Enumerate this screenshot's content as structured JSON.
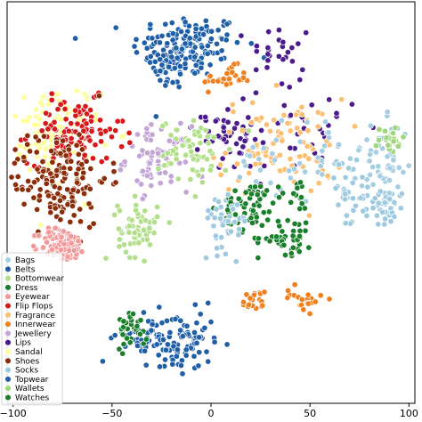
{
  "chart_data": {
    "type": "scatter",
    "title": "",
    "xlabel": "",
    "ylabel": "",
    "xlim": [
      -103,
      103
    ],
    "ylim": [
      -100,
      100
    ],
    "x_ticks": [
      -100,
      -50,
      0,
      50,
      100
    ],
    "x_tick_labels": [
      "−100",
      "−50",
      "0",
      "50",
      "100"
    ],
    "grid": false,
    "legend_placement": "lower-left",
    "series": [
      {
        "name": "Bags",
        "color": "#a6cee3"
      },
      {
        "name": "Belts",
        "color": "#1f5fa8"
      },
      {
        "name": "Bottomwear",
        "color": "#b2df8a"
      },
      {
        "name": "Dress",
        "color": "#1a7f2a"
      },
      {
        "name": "Eyewear",
        "color": "#f4999a"
      },
      {
        "name": "Flip Flops",
        "color": "#d7191c"
      },
      {
        "name": "Fragrance",
        "color": "#fdbf6f"
      },
      {
        "name": "Innerwear",
        "color": "#f07f1e"
      },
      {
        "name": "Jewellery",
        "color": "#c3a5d6"
      },
      {
        "name": "Lips",
        "color": "#4b1a8c"
      },
      {
        "name": "Sandal",
        "color": "#ffff99"
      },
      {
        "name": "Shoes",
        "color": "#8c2d0a"
      },
      {
        "name": "Socks",
        "color": "#9ecae1"
      },
      {
        "name": "Topwear",
        "color": "#1f5fa8"
      },
      {
        "name": "Wallets",
        "color": "#9fd77a"
      },
      {
        "name": "Watches",
        "color": "#1a7f2a"
      }
    ],
    "clusters": [
      {
        "series": "Belts",
        "cx": -12,
        "cy": 78,
        "sx": 14,
        "sy": 8,
        "n": 140
      },
      {
        "series": "Topwear",
        "cx": -20,
        "cy": 68,
        "sx": 5,
        "sy": 6,
        "n": 40
      },
      {
        "series": "Lips",
        "cx": 35,
        "cy": 76,
        "sx": 8,
        "sy": 7,
        "n": 25
      },
      {
        "series": "Innerwear",
        "cx": 8,
        "cy": 62,
        "sx": 6,
        "sy": 3,
        "n": 30
      },
      {
        "series": "Lips",
        "cx": 8,
        "cy": 33,
        "sx": 6,
        "sy": 8,
        "n": 35
      },
      {
        "series": "Lips",
        "cx": 40,
        "cy": 37,
        "sx": 20,
        "sy": 12,
        "n": 45
      },
      {
        "series": "Fragrance",
        "cx": 35,
        "cy": 28,
        "sx": 16,
        "sy": 12,
        "n": 90
      },
      {
        "series": "Jewellery",
        "cx": -27,
        "cy": 22,
        "sx": 8,
        "sy": 8,
        "n": 80
      },
      {
        "series": "Bottomwear",
        "cx": -8,
        "cy": 25,
        "sx": 9,
        "sy": 8,
        "n": 60
      },
      {
        "series": "Bags",
        "cx": 45,
        "cy": 20,
        "sx": 18,
        "sy": 10,
        "n": 50
      },
      {
        "series": "Sandal",
        "cx": -80,
        "cy": 35,
        "sx": 12,
        "sy": 12,
        "n": 120
      },
      {
        "series": "Flip Flops",
        "cx": -68,
        "cy": 35,
        "sx": 12,
        "sy": 8,
        "n": 100
      },
      {
        "series": "Shoes",
        "cx": -78,
        "cy": 12,
        "sx": 13,
        "sy": 12,
        "n": 170
      },
      {
        "series": "Eyewear",
        "cx": -75,
        "cy": -21,
        "sx": 6,
        "sy": 4,
        "n": 110
      },
      {
        "series": "Dress",
        "cx": 20,
        "cy": -2,
        "sx": 7,
        "sy": 6,
        "n": 60
      },
      {
        "series": "Watches",
        "cx": 38,
        "cy": -18,
        "sx": 7,
        "sy": 4,
        "n": 40
      },
      {
        "series": "Dress",
        "cx": 43,
        "cy": 3,
        "sx": 5,
        "sy": 6,
        "n": 20
      },
      {
        "series": "Bottomwear",
        "cx": -37,
        "cy": -13,
        "sx": 5,
        "sy": 7,
        "n": 60
      },
      {
        "series": "Socks",
        "cx": 8,
        "cy": -8,
        "sx": 6,
        "sy": 8,
        "n": 40
      },
      {
        "series": "Socks",
        "cx": 72,
        "cy": 2,
        "sx": 7,
        "sy": 8,
        "n": 40
      },
      {
        "series": "Bags",
        "cx": 88,
        "cy": 20,
        "sx": 6,
        "sy": 10,
        "n": 50
      },
      {
        "series": "Wallets",
        "cx": 90,
        "cy": 30,
        "sx": 4,
        "sy": 4,
        "n": 25
      },
      {
        "series": "Socks",
        "cx": 90,
        "cy": -2,
        "sx": 4,
        "sy": 5,
        "n": 25
      },
      {
        "series": "Topwear",
        "cx": -31,
        "cy": -68,
        "sx": 8,
        "sy": 6,
        "n": 60
      },
      {
        "series": "Belts",
        "cx": -12,
        "cy": -70,
        "sx": 7,
        "sy": 8,
        "n": 70
      },
      {
        "series": "Dress",
        "cx": -40,
        "cy": -62,
        "sx": 4,
        "sy": 5,
        "n": 30
      },
      {
        "series": "Innerwear",
        "cx": 22,
        "cy": -50,
        "sx": 3,
        "sy": 3,
        "n": 20
      },
      {
        "series": "Innerwear",
        "cx": 47,
        "cy": -48,
        "sx": 5,
        "sy": 3,
        "n": 22
      }
    ]
  }
}
